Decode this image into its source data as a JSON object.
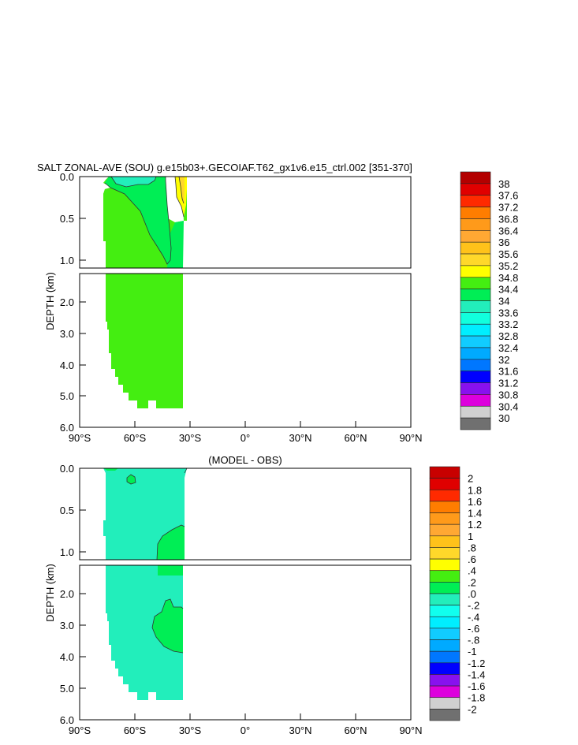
{
  "chart_data": [
    {
      "type": "heatmap",
      "title": "SALT ZONAL-AVE (SOU) g.e15b03+.GECOIAF.T62_gx1v6.e15_ctrl.002 [351-370]",
      "xlabel": "",
      "ylabel": "DEPTH (km)",
      "x_ticks": [
        "90°S",
        "60°S",
        "30°S",
        "0°",
        "30°N",
        "60°N",
        "90°N"
      ],
      "y_ticks_upper": [
        "0.0",
        "0.5",
        "1.0"
      ],
      "y_ticks_lower": [
        "2.0",
        "3.0",
        "4.0",
        "5.0",
        "6.0"
      ],
      "xlim": [
        -90,
        90
      ],
      "ylim_upper": [
        0,
        1.1
      ],
      "ylim_lower": [
        1.1,
        6.0
      ],
      "legend_position": "right",
      "colorbar": {
        "labels": [
          "38",
          "37.6",
          "37.2",
          "36.8",
          "36.4",
          "36",
          "35.6",
          "35.2",
          "34.8",
          "34.4",
          "34",
          "33.6",
          "33.2",
          "32.8",
          "32.4",
          "32",
          "31.6",
          "31.2",
          "30.8",
          "30.4",
          "30"
        ],
        "colors": [
          "#b30000",
          "#e00000",
          "#ff2a00",
          "#ff7d00",
          "#ff9a1a",
          "#ffa833",
          "#ffc21a",
          "#ffd82a",
          "#ffff00",
          "#44ee11",
          "#00ee55",
          "#22eebb",
          "#11ffdd",
          "#00eeff",
          "#11ccff",
          "#00aaff",
          "#0077ff",
          "#0000ff",
          "#8811ee",
          "#dd00dd",
          "#d0d0d0",
          "#707070"
        ]
      },
      "fields": [
        {
          "value": "34.4–34.8",
          "color": "#44ee11"
        },
        {
          "value": "34.0–34.4",
          "color": "#00ee55"
        },
        {
          "value": "33.6–34.0",
          "color": "#22eebb"
        },
        {
          "value": "34.8–35.2",
          "color": "#ffff00"
        },
        {
          "value": "35.2–35.6",
          "color": "#ffd82a"
        }
      ]
    },
    {
      "type": "heatmap",
      "title": "(MODEL - OBS)",
      "xlabel": "",
      "ylabel": "DEPTH (km)",
      "x_ticks": [
        "90°S",
        "60°S",
        "30°S",
        "0°",
        "30°N",
        "60°N",
        "90°N"
      ],
      "y_ticks_upper": [
        "0.0",
        "0.5",
        "1.0"
      ],
      "y_ticks_lower": [
        "2.0",
        "3.0",
        "4.0",
        "5.0",
        "6.0"
      ],
      "xlim": [
        -90,
        90
      ],
      "ylim_upper": [
        0,
        1.1
      ],
      "ylim_lower": [
        1.1,
        6.0
      ],
      "legend_position": "right",
      "colorbar": {
        "labels": [
          "2",
          "1.8",
          "1.6",
          "1.4",
          "1.2",
          "1",
          ".8",
          ".6",
          ".4",
          ".2",
          ".0",
          "-.2",
          "-.4",
          "-.6",
          "-.8",
          "-1",
          "-1.2",
          "-1.4",
          "-1.6",
          "-1.8",
          "-2"
        ],
        "colors": [
          "#c80000",
          "#e00000",
          "#ff2a00",
          "#ff7d00",
          "#ff9a1a",
          "#ffa833",
          "#ffc21a",
          "#ffd82a",
          "#ffff00",
          "#44ee11",
          "#00ee55",
          "#22eebb",
          "#11ffee",
          "#00eeff",
          "#11ccff",
          "#00aaff",
          "#0077ff",
          "#0000ff",
          "#8811ee",
          "#dd00dd",
          "#d0d0d0",
          "#707070"
        ]
      },
      "fields": [
        {
          "value": "-0.2–0.0",
          "color": "#22eebb"
        },
        {
          "value": "0.0–0.2",
          "color": "#00ee55"
        },
        {
          "value": "0.2–0.4",
          "color": "#44ee11"
        }
      ]
    }
  ]
}
